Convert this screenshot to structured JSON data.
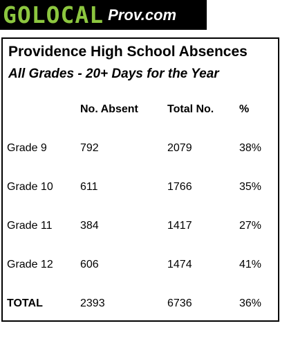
{
  "logo": {
    "brand": "GOLOCAL",
    "site": "Prov.com"
  },
  "table": {
    "title": "Providence High School Absences",
    "subtitle": "All Grades - 20+ Days for the Year",
    "headers": [
      "",
      "No. Absent",
      "Total No.",
      "%"
    ],
    "rows": [
      {
        "label": "Grade 9",
        "absent": "792",
        "total": "2079",
        "pct": "38%"
      },
      {
        "label": "Grade 10",
        "absent": "611",
        "total": "1766",
        "pct": "35%"
      },
      {
        "label": "Grade 11",
        "absent": "384",
        "total": "1417",
        "pct": "27%"
      },
      {
        "label": "Grade 12",
        "absent": "606",
        "total": "1474",
        "pct": "41%"
      },
      {
        "label": "TOTAL",
        "absent": "2393",
        "total": "6736",
        "pct": "36%"
      }
    ]
  }
}
